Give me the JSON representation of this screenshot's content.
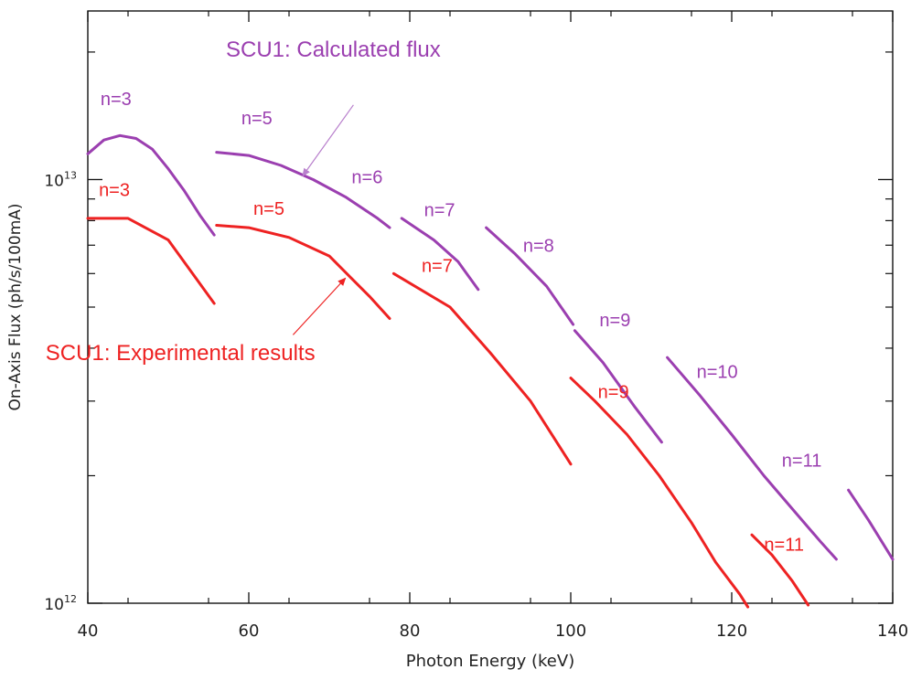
{
  "chart_data": {
    "type": "line",
    "title": "",
    "xlabel": "Photon Energy (keV)",
    "ylabel": "On-Axis Flux (ph/s/100mA)",
    "xlim": [
      40,
      140
    ],
    "ylim": [
      1000000000000.0,
      25000000000000.0
    ],
    "yscale": "log",
    "grid": false,
    "x_ticks": [
      40,
      60,
      80,
      100,
      120,
      140
    ],
    "x_tick_labels": [
      "40",
      "60",
      "80",
      "100",
      "120",
      "140"
    ],
    "y_tick_labels": [
      {
        "value": 10000000000000.0,
        "base": "10",
        "exp": "13"
      },
      {
        "value": 1000000000000.0,
        "base": "10",
        "exp": "12"
      }
    ],
    "colors": {
      "calculated": "#9b3fb0",
      "experimental": "#ee2222"
    },
    "series": [
      {
        "name": "SCU1: Calculated flux",
        "color": "#9b3fb0",
        "segments": [
          {
            "label": "n=3",
            "points": [
              [
                40,
                11500000000000.0
              ],
              [
                42,
                12400000000000.0
              ],
              [
                44,
                12700000000000.0
              ],
              [
                46,
                12500000000000.0
              ],
              [
                48,
                11800000000000.0
              ],
              [
                50,
                10600000000000.0
              ],
              [
                52,
                9400000000000.0
              ],
              [
                54,
                8200000000000.0
              ],
              [
                55.7,
                7400000000000.0
              ]
            ]
          },
          {
            "label": "n=5",
            "points": [
              [
                56,
                11600000000000.0
              ],
              [
                60,
                11400000000000.0
              ],
              [
                64,
                10800000000000.0
              ],
              [
                68,
                10000000000000.0
              ],
              [
                72,
                9100000000000.0
              ],
              [
                76,
                8100000000000.0
              ],
              [
                77.5,
                7700000000000.0
              ]
            ]
          },
          {
            "label": "n=7",
            "points": [
              [
                79,
                8100000000000.0
              ],
              [
                83,
                7200000000000.0
              ],
              [
                86,
                6400000000000.0
              ],
              [
                88.5,
                5500000000000.0
              ]
            ]
          },
          {
            "label": "n=8",
            "points": [
              [
                89.5,
                7700000000000.0
              ],
              [
                93,
                6700000000000.0
              ],
              [
                97,
                5600000000000.0
              ],
              [
                100.3,
                4550000000000.0
              ]
            ]
          },
          {
            "label": "n=9",
            "points": [
              [
                100.5,
                4400000000000.0
              ],
              [
                104,
                3700000000000.0
              ],
              [
                108,
                2900000000000.0
              ],
              [
                111.3,
                2400000000000.0
              ]
            ]
          },
          {
            "label": "n=10",
            "points": [
              [
                112,
                3800000000000.0
              ],
              [
                116,
                3100000000000.0
              ],
              [
                120,
                2500000000000.0
              ],
              [
                124,
                2000000000000.0
              ],
              [
                128,
                1630000000000.0
              ],
              [
                131,
                1400000000000.0
              ],
              [
                133,
                1270000000000.0
              ]
            ]
          },
          {
            "label": "",
            "points": [
              [
                134.5,
                1850000000000.0
              ],
              [
                137,
                1570000000000.0
              ],
              [
                140,
                1270000000000.0
              ]
            ]
          }
        ]
      },
      {
        "name": "SCU1: Experimental results",
        "color": "#ee2222",
        "segments": [
          {
            "label": "n=3",
            "points": [
              [
                40,
                8100000000000.0
              ],
              [
                45,
                8100000000000.0
              ],
              [
                50,
                7200000000000.0
              ],
              [
                55.7,
                5100000000000.0
              ]
            ]
          },
          {
            "label": "n=5",
            "points": [
              [
                56,
                7800000000000.0
              ],
              [
                60,
                7700000000000.0
              ],
              [
                65,
                7300000000000.0
              ],
              [
                70,
                6600000000000.0
              ],
              [
                75,
                5300000000000.0
              ],
              [
                77.5,
                4700000000000.0
              ]
            ]
          },
          {
            "label": "n=7",
            "points": [
              [
                78,
                6000000000000.0
              ],
              [
                85,
                5000000000000.0
              ],
              [
                90,
                3900000000000.0
              ],
              [
                95,
                3000000000000.0
              ],
              [
                100,
                2130000000000.0
              ]
            ]
          },
          {
            "label": "n=9",
            "points": [
              [
                100,
                3400000000000.0
              ],
              [
                103,
                3000000000000.0
              ],
              [
                107,
                2500000000000.0
              ],
              [
                111,
                2000000000000.0
              ],
              [
                115,
                1550000000000.0
              ],
              [
                118,
                1250000000000.0
              ],
              [
                121,
                1050000000000.0
              ],
              [
                122,
                980000000000.0
              ]
            ]
          },
          {
            "label": "n=11",
            "points": [
              [
                122.5,
                1450000000000.0
              ],
              [
                125,
                1300000000000.0
              ],
              [
                127.5,
                1130000000000.0
              ],
              [
                129.5,
                990000000000.0
              ]
            ]
          }
        ]
      }
    ],
    "annotations": [
      {
        "text": "n=3",
        "color": "#9b3fb0",
        "x": 43.5,
        "y": 15000000000000.0
      },
      {
        "text": "n=5",
        "color": "#9b3fb0",
        "x": 61,
        "y": 13500000000000.0
      },
      {
        "text": "n=6",
        "color": "#9b3fb0",
        "x": 74.7,
        "y": 9800000000000.0
      },
      {
        "text": "n=7",
        "color": "#9b3fb0",
        "x": 83.7,
        "y": 8200000000000.0
      },
      {
        "text": "n=8",
        "color": "#9b3fb0",
        "x": 96,
        "y": 6750000000000.0
      },
      {
        "text": "n=9",
        "color": "#9b3fb0",
        "x": 105.5,
        "y": 4500000000000.0
      },
      {
        "text": "n=10",
        "color": "#9b3fb0",
        "x": 118.2,
        "y": 3400000000000.0
      },
      {
        "text": "n=11",
        "color": "#9b3fb0",
        "x": 128.7,
        "y": 2100000000000.0
      },
      {
        "text": "n=3",
        "color": "#ee2222",
        "x": 43.3,
        "y": 9150000000000.0
      },
      {
        "text": "n=5",
        "color": "#ee2222",
        "x": 62.5,
        "y": 8250000000000.0
      },
      {
        "text": "n=7",
        "color": "#ee2222",
        "x": 83.4,
        "y": 6050000000000.0
      },
      {
        "text": "n=9",
        "color": "#ee2222",
        "x": 105.3,
        "y": 3050000000000.0
      },
      {
        "text": "n=11",
        "color": "#ee2222",
        "x": 126.5,
        "y": 1330000000000.0
      }
    ],
    "legend_labels": [
      {
        "text": "SCU1: Calculated flux",
        "color": "#9b3fb0",
        "x": 70.5,
        "y": 19500000000000.0,
        "arrow_from": [
          73,
          15000000000000.0
        ],
        "arrow_to": [
          66.7,
          10200000000000.0
        ]
      },
      {
        "text": "SCU1: Experimental results",
        "color": "#ee2222",
        "x": 51.5,
        "y": 3750000000000.0,
        "arrow_from": [
          65.5,
          4300000000000.0
        ],
        "arrow_to": [
          72,
          5850000000000.0
        ]
      }
    ]
  }
}
